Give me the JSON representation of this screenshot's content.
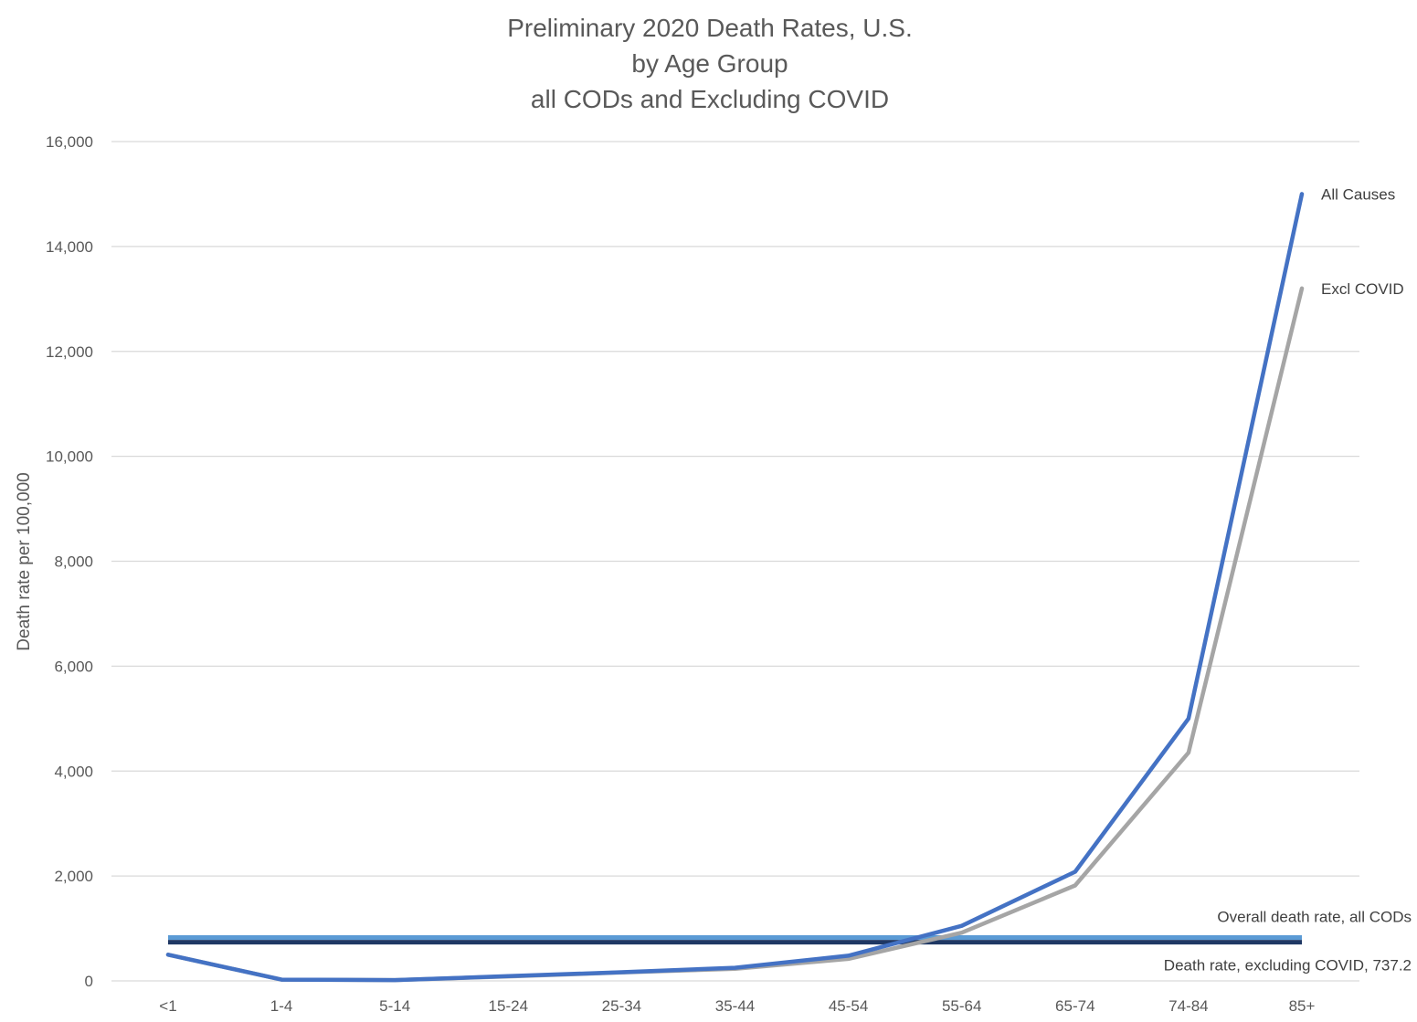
{
  "chart_data": {
    "type": "line",
    "title": [
      "Preliminary 2020 Death Rates, U.S.",
      "by Age Group",
      "all CODs and Excluding COVID"
    ],
    "ylabel": "Death rate per 100,000",
    "xlabel": "",
    "ylim": [
      0,
      16000
    ],
    "yticks": [
      0,
      2000,
      4000,
      6000,
      8000,
      10000,
      12000,
      14000,
      16000
    ],
    "ytick_labels": [
      "0",
      "2,000",
      "4,000",
      "6,000",
      "8,000",
      "10,000",
      "12,000",
      "14,000",
      "16,000"
    ],
    "grid": true,
    "categories": [
      "<1",
      "1-4",
      "5-14",
      "15-24",
      "25-34",
      "35-44",
      "45-54",
      "55-64",
      "65-74",
      "74-84",
      "85+"
    ],
    "series": [
      {
        "name": "All Causes",
        "color": "#4472C4",
        "values": [
          500,
          25,
          15,
          90,
          165,
          250,
          480,
          1050,
          2080,
          5000,
          15000
        ]
      },
      {
        "name": "Excl COVID",
        "color": "#A5A5A5",
        "values": [
          500,
          25,
          15,
          85,
          160,
          230,
          420,
          920,
          1820,
          4350,
          13200
        ]
      }
    ],
    "reference_lines": [
      {
        "name": "Overall death rate, all CODs",
        "value": 828,
        "color": "#5B9BD5"
      },
      {
        "name": "Death rate, excluding COVID, 737.2",
        "value": 737.2,
        "color": "#1F3864"
      }
    ]
  }
}
